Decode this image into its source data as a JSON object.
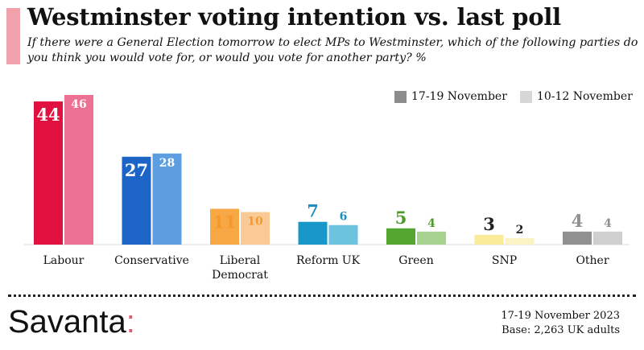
{
  "header": {
    "title": "Westminster voting intention vs. last poll",
    "subtitle": "If there were a General Election tomorrow to elect MPs to Westminster, which of the following parties do you think you would vote for, or would you vote for another party? %"
  },
  "legend": {
    "current_label": "17-19 November",
    "previous_label": "10-12 November",
    "current_color": "#8c8c8c",
    "previous_color": "#d6d6d6"
  },
  "chart_data": {
    "type": "bar",
    "categories": [
      "Labour",
      "Conservative",
      "Liberal Democrat",
      "Reform UK",
      "Green",
      "SNP",
      "Other"
    ],
    "category_lines": [
      [
        "Labour"
      ],
      [
        "Conservative"
      ],
      [
        "Liberal",
        "Democrat"
      ],
      [
        "Reform UK"
      ],
      [
        "Green"
      ],
      [
        "SNP"
      ],
      [
        "Other"
      ]
    ],
    "series": [
      {
        "name": "17-19 November",
        "values": [
          44,
          27,
          11,
          7,
          5,
          3,
          4
        ]
      },
      {
        "name": "10-12 November",
        "values": [
          46,
          28,
          10,
          6,
          4,
          2,
          4
        ]
      }
    ],
    "colors": {
      "current": [
        "#e0103f",
        "#1c64c6",
        "#f7a744",
        "#1898c8",
        "#53a630",
        "#f8ec9a",
        "#909090"
      ],
      "previous": [
        "#ec7093",
        "#5d9ee0",
        "#f9c996",
        "#6bc3de",
        "#a6d290",
        "#faf3c4",
        "#cfcfcf"
      ],
      "current_label": [
        "#ffffff",
        "#ffffff",
        "#f49a2c",
        "#1a8fc0",
        "#4e9a2a",
        "#222222",
        "#909090"
      ],
      "previous_label": [
        "#ffffff",
        "#ffffff",
        "#f49a2c",
        "#1a8fc0",
        "#4e9a2a",
        "#222222",
        "#909090"
      ]
    },
    "ylim": [
      0,
      46
    ],
    "xlabel": "",
    "ylabel": ""
  },
  "footer": {
    "logo_text": "Savanta",
    "logo_colon": ":",
    "date": "17-19 November 2023",
    "base": "Base: 2,263 UK adults"
  }
}
